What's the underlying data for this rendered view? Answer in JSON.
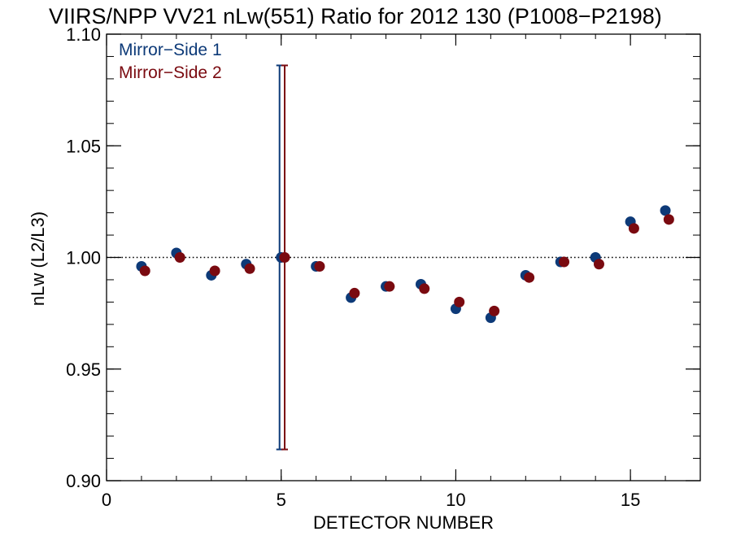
{
  "chart_data": {
    "type": "scatter",
    "title": "VIIRS/NPP VV21 nLw(551) Ratio for 2012 130 (P1008−P2198)",
    "xlabel": "DETECTOR NUMBER",
    "ylabel": "nLw (L2/L3)",
    "xlim": [
      0,
      17
    ],
    "ylim": [
      0.9,
      1.1
    ],
    "x_ticks": [
      0,
      5,
      10,
      15
    ],
    "x_tick_labels": [
      "0",
      "5",
      "10",
      "15"
    ],
    "x_minor_step": 1,
    "y_ticks": [
      0.9,
      0.95,
      1.0,
      1.05,
      1.1
    ],
    "y_tick_labels": [
      "0.90",
      "0.95",
      "1.00",
      "1.05",
      "1.10"
    ],
    "y_minor_step": 0.01,
    "reference_line": {
      "y": 1.0,
      "style": "dotted"
    },
    "legend_position": "top-left",
    "series": [
      {
        "name": "Mirror−Side 1",
        "color": "#0d3a78",
        "x": [
          1,
          2,
          3,
          4,
          5,
          6,
          7,
          8,
          9,
          10,
          11,
          12,
          13,
          14,
          15,
          16
        ],
        "y": [
          0.996,
          1.002,
          0.992,
          0.997,
          1.0,
          0.996,
          0.982,
          0.987,
          0.988,
          0.977,
          0.973,
          0.992,
          0.998,
          1.0,
          1.016,
          1.021
        ],
        "error_bar": {
          "x": 5,
          "low": 0.914,
          "high": 1.086
        }
      },
      {
        "name": "Mirror−Side 2",
        "color": "#7a0a10",
        "x": [
          1.1,
          2.1,
          3.1,
          4.1,
          5.1,
          6.1,
          7.1,
          8.1,
          9.1,
          10.1,
          11.1,
          12.1,
          13.1,
          14.1,
          15.1,
          16.1
        ],
        "y": [
          0.994,
          1.0,
          0.994,
          0.995,
          1.0,
          0.996,
          0.984,
          0.987,
          0.986,
          0.98,
          0.976,
          0.991,
          0.998,
          0.997,
          1.013,
          1.017
        ],
        "error_bar": {
          "x": 5.1,
          "low": 0.914,
          "high": 1.086
        }
      }
    ]
  }
}
